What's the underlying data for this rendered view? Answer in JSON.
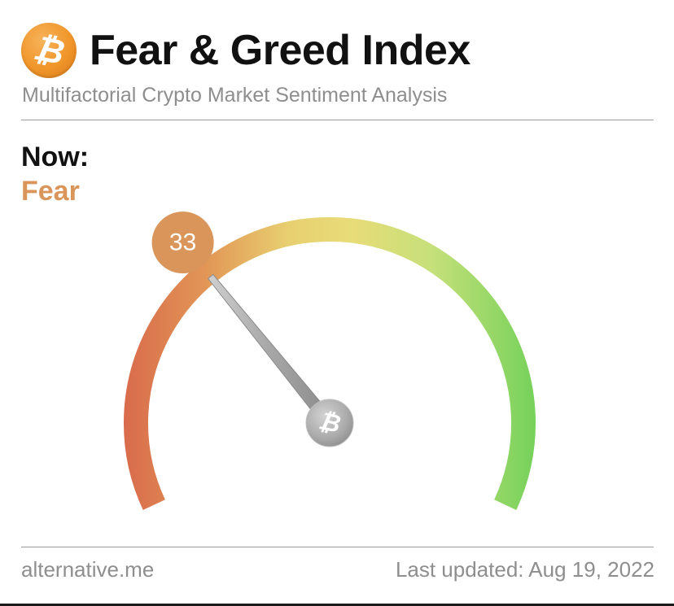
{
  "header": {
    "logo_icon": "bitcoin-icon",
    "logo_glyph": "₿",
    "title": "Fear & Greed Index",
    "subtitle": "Multifactorial Crypto Market Sentiment Analysis"
  },
  "current": {
    "label": "Now:",
    "status": "Fear",
    "status_color": "#d9955a",
    "value": "33",
    "value_number": 33,
    "range": [
      0,
      100
    ],
    "badge_color": "#d9955a"
  },
  "gauge": {
    "center_icon": "bitcoin-icon",
    "center_glyph": "₿",
    "colors": [
      "#d86a4c",
      "#e8ac5c",
      "#e8da75",
      "#c7e27a",
      "#78d25c"
    ]
  },
  "footer": {
    "source": "alternative.me",
    "last_updated": "Last updated: Aug 19, 2022"
  }
}
